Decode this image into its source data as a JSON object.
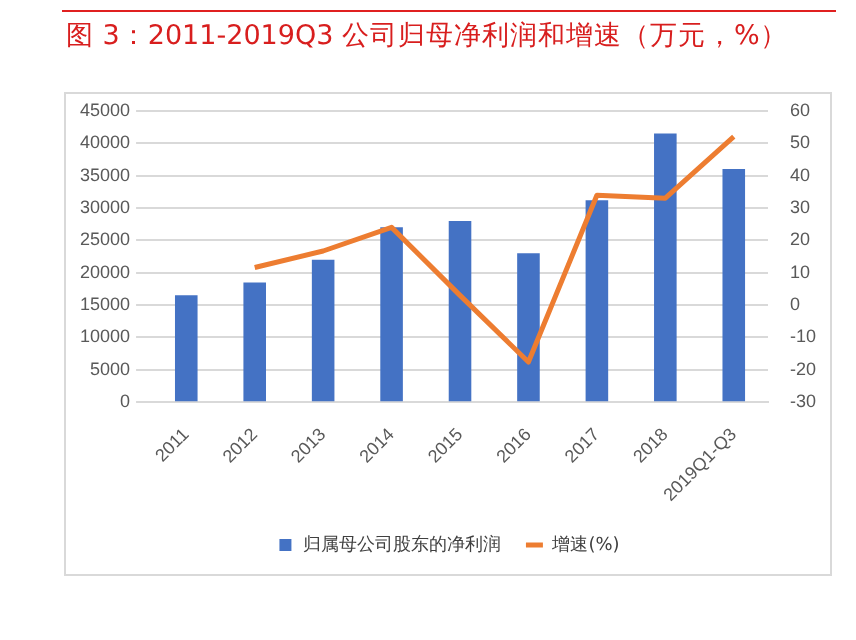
{
  "chart_data": {
    "type": "bar",
    "title": "图 3：2011-2019Q3 公司归母净利润和增速（万元，%）",
    "categories": [
      "2011",
      "2012",
      "2013",
      "2014",
      "2015",
      "2016",
      "2017",
      "2018",
      "2019Q1-Q3"
    ],
    "series": [
      {
        "name": "归属母公司股东的净利润",
        "color": "#4472c4",
        "values": [
          16500,
          18500,
          22000,
          27000,
          28000,
          23000,
          31200,
          41500,
          36000
        ]
      },
      {
        "name": "增速(%)",
        "type": "line",
        "axis": "y2",
        "color": "#ed7d31",
        "values": [
          null,
          11.6,
          16.7,
          24,
          3,
          -17.6,
          33.9,
          33,
          52
        ]
      }
    ],
    "ylim": [
      0,
      45000
    ],
    "yticks": [
      0,
      5000,
      10000,
      15000,
      20000,
      25000,
      30000,
      35000,
      40000,
      45000
    ],
    "y2lim": [
      -30,
      60
    ],
    "y2ticks": [
      -30,
      -20,
      -10,
      0,
      10,
      20,
      30,
      40,
      50,
      60
    ],
    "grid": "y",
    "legend": "bottom",
    "marker": "none"
  }
}
